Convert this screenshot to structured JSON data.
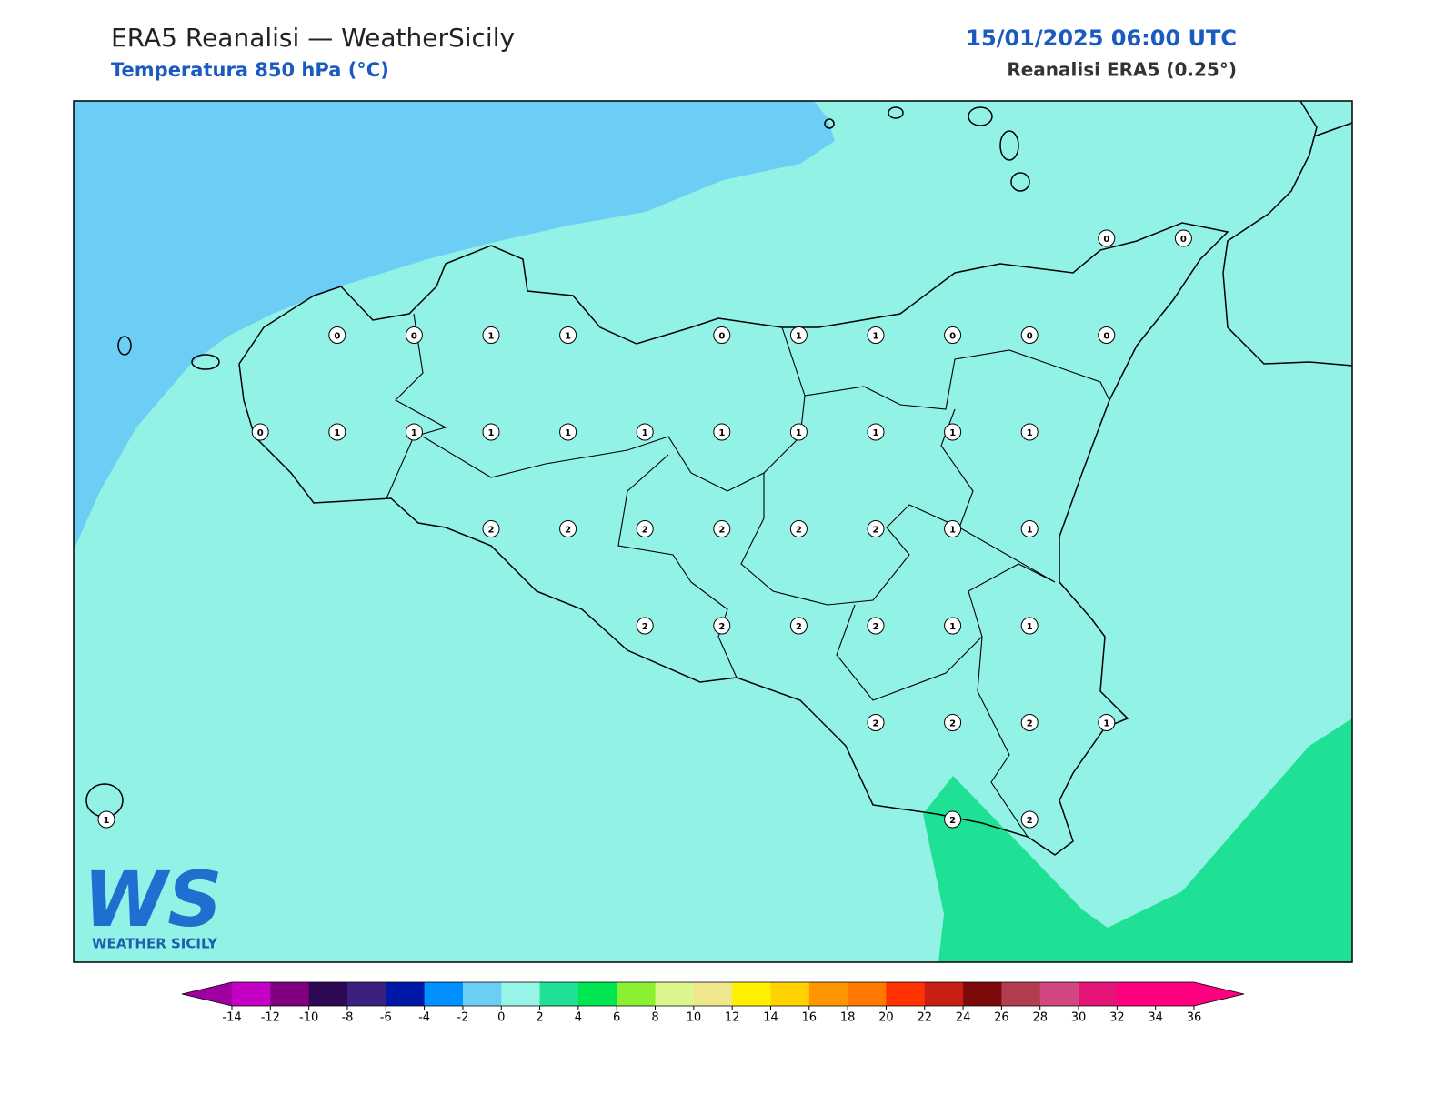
{
  "header": {
    "title": "ERA5 Reanalisi — WeatherSicily",
    "subtitle": "Temperatura 850 hPa (°C)",
    "date": "15/01/2025 06:00 UTC",
    "source": "Reanalisi ERA5 (0.25°)"
  },
  "stations": {
    "rows": [
      [
        null,
        null,
        null,
        null,
        null,
        null,
        null,
        null,
        null,
        null,
        null,
        null,
        null,
        0,
        0
      ],
      [
        null,
        null,
        null,
        0,
        0,
        1,
        1,
        null,
        0,
        1,
        1,
        0,
        0,
        0,
        null
      ],
      [
        null,
        null,
        0,
        1,
        1,
        1,
        1,
        1,
        1,
        1,
        1,
        1,
        1,
        null,
        null
      ],
      [
        null,
        null,
        null,
        null,
        null,
        2,
        2,
        2,
        2,
        2,
        2,
        1,
        1,
        null,
        null
      ],
      [
        null,
        null,
        null,
        null,
        null,
        null,
        null,
        2,
        2,
        2,
        2,
        1,
        1,
        null,
        null
      ],
      [
        null,
        null,
        null,
        null,
        null,
        null,
        null,
        null,
        null,
        null,
        2,
        2,
        2,
        1,
        null
      ],
      [
        1,
        null,
        null,
        null,
        null,
        null,
        null,
        null,
        null,
        null,
        null,
        2,
        2,
        null,
        null
      ]
    ]
  },
  "colorbar": {
    "ticks": [
      -14,
      -12,
      -10,
      -8,
      -6,
      -4,
      -2,
      0,
      2,
      4,
      6,
      8,
      10,
      12,
      14,
      16,
      18,
      20,
      22,
      24,
      26,
      28,
      30,
      32,
      34,
      36
    ],
    "colors": [
      "#c400c4",
      "#800080",
      "#2e0a55",
      "#3c2080",
      "#0018a8",
      "#0090ff",
      "#6ccef5",
      "#96f5e6",
      "#1ee196",
      "#00e650",
      "#8cf032",
      "#dcf58c",
      "#f0e68c",
      "#fff000",
      "#ffd200",
      "#ff9600",
      "#ff7800",
      "#ff3200",
      "#c81e14",
      "#7d0a0a",
      "#b43c50",
      "#d24682",
      "#e61478",
      "#ff0080",
      "#ff0080"
    ],
    "under_color": "#a000a0",
    "over_color": "#ff0080"
  },
  "logo": {
    "mark": "WS",
    "text": "WEATHER SICILY"
  }
}
